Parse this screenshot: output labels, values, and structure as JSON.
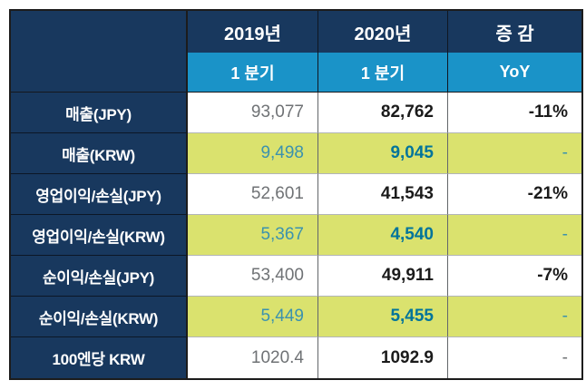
{
  "table": {
    "header": {
      "col_2019": "2019년",
      "col_2020": "2020년",
      "col_diff": "증 감",
      "sub_2019": "1 분기",
      "sub_2020": "1 분기",
      "sub_diff": "YoY"
    },
    "rows": [
      {
        "label": "매출(JPY)",
        "y2019": "93,077",
        "y2020": "82,762",
        "yoy": "-11%"
      },
      {
        "label": "매출(KRW)",
        "y2019": "9,498",
        "y2020": "9,045",
        "yoy": "-"
      },
      {
        "label": "영업이익/손실(JPY)",
        "y2019": "52,601",
        "y2020": "41,543",
        "yoy": "-21%"
      },
      {
        "label": "영업이익/손실(KRW)",
        "y2019": "5,367",
        "y2020": "4,540",
        "yoy": "-"
      },
      {
        "label": "순이익/손실(JPY)",
        "y2019": "53,400",
        "y2020": "49,911",
        "yoy": "-7%"
      },
      {
        "label": "순이익/손실(KRW)",
        "y2019": "5,449",
        "y2020": "5,455",
        "yoy": "-"
      },
      {
        "label": "100엔당 KRW",
        "y2019": "1020.4",
        "y2020": "1092.9",
        "yoy": "-"
      }
    ],
    "colors": {
      "navy": "#18385E",
      "cyan": "#1A93C8",
      "green": "#DAE26E",
      "teal": "#3B92AE",
      "tealBold": "#00749B"
    }
  },
  "chart_data": {
    "type": "table",
    "title": "",
    "column_groups": [
      {
        "label": "2019년",
        "sub": "1 분기"
      },
      {
        "label": "2020년",
        "sub": "1 분기"
      },
      {
        "label": "증 감",
        "sub": "YoY"
      }
    ],
    "rows": [
      {
        "label": "매출(JPY)",
        "values": [
          93077,
          82762
        ],
        "yoy": "-11%"
      },
      {
        "label": "매출(KRW)",
        "values": [
          9498,
          9045
        ],
        "yoy": "-"
      },
      {
        "label": "영업이익/손실(JPY)",
        "values": [
          52601,
          41543
        ],
        "yoy": "-21%"
      },
      {
        "label": "영업이익/손실(KRW)",
        "values": [
          5367,
          4540
        ],
        "yoy": "-"
      },
      {
        "label": "순이익/손실(JPY)",
        "values": [
          53400,
          49911
        ],
        "yoy": "-7%"
      },
      {
        "label": "순이익/손실(KRW)",
        "values": [
          5449,
          5455
        ],
        "yoy": "-"
      },
      {
        "label": "100엔당 KRW",
        "values": [
          1020.4,
          1092.9
        ],
        "yoy": "-"
      }
    ],
    "legend_position": "none",
    "grid": true
  }
}
